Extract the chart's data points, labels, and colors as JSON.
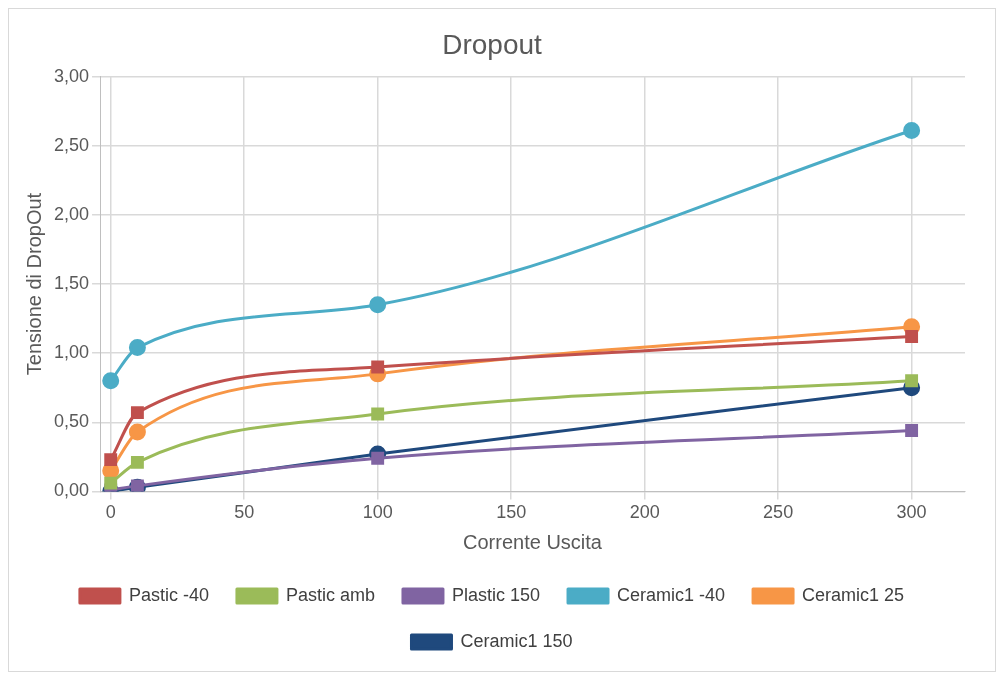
{
  "chart_data": {
    "type": "line",
    "title": "Dropout",
    "xlabel": "Corrente Uscita",
    "ylabel": "Tensione di DropOut",
    "x": [
      0,
      10,
      100,
      300
    ],
    "series": [
      {
        "name": "Pastic -40",
        "color": "#c0504d",
        "marker": "square",
        "values": [
          0.23,
          0.57,
          0.9,
          1.12
        ]
      },
      {
        "name": "Pastic amb",
        "color": "#9bbb59",
        "marker": "square",
        "values": [
          0.06,
          0.21,
          0.56,
          0.8
        ]
      },
      {
        "name": "Plastic 150",
        "color": "#8064a2",
        "marker": "square",
        "values": [
          0.01,
          0.04,
          0.24,
          0.44
        ]
      },
      {
        "name": "Ceramic1 -40",
        "color": "#4bacc6",
        "marker": "circle",
        "values": [
          0.8,
          1.04,
          1.35,
          2.61
        ]
      },
      {
        "name": "Ceramic1 25",
        "color": "#f79646",
        "marker": "circle",
        "values": [
          0.15,
          0.43,
          0.85,
          1.19
        ]
      },
      {
        "name": "Ceramic1 150",
        "color": "#1f497d",
        "marker": "circle",
        "values": [
          0.0,
          0.03,
          0.27,
          0.75
        ]
      }
    ],
    "xlim": [
      -4,
      320
    ],
    "xticks": [
      0,
      50,
      100,
      150,
      200,
      250,
      300
    ],
    "ylim": [
      0,
      3
    ],
    "yticks": [
      {
        "value": 0,
        "label": "0,00"
      },
      {
        "value": 0.5,
        "label": "0,50"
      },
      {
        "value": 1,
        "label": "1,00"
      },
      {
        "value": 1.5,
        "label": "1,50"
      },
      {
        "value": 2,
        "label": "2,00"
      },
      {
        "value": 2.5,
        "label": "2,50"
      },
      {
        "value": 3,
        "label": "3,00"
      }
    ],
    "grid": true,
    "legend": "bottom"
  }
}
